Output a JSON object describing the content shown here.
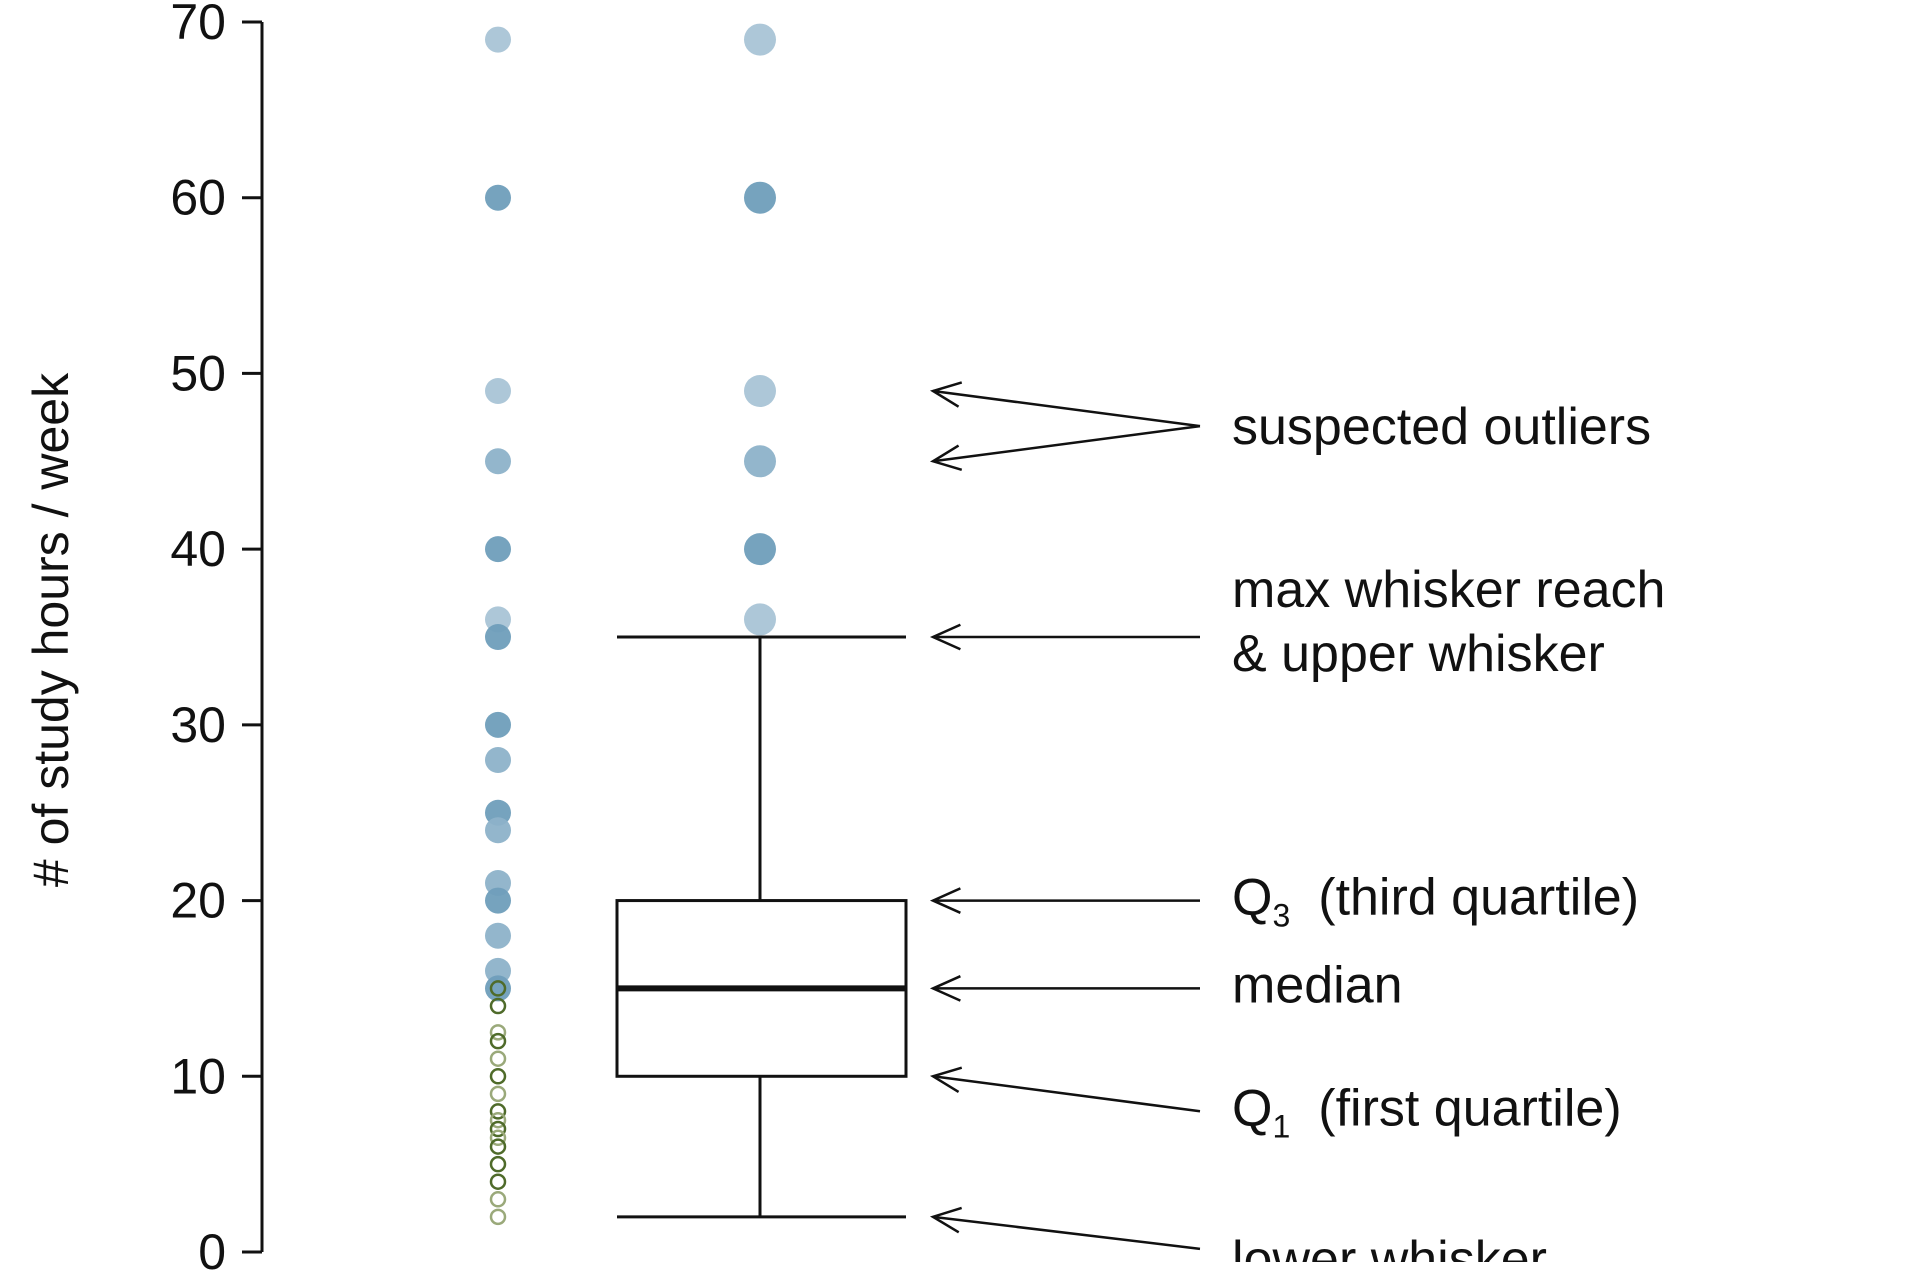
{
  "chart_data": {
    "type": "boxplot",
    "title": "",
    "xlabel": "",
    "ylabel": "# of study hours / week",
    "ylim": [
      0,
      70
    ],
    "yticks": [
      "0",
      "10",
      "20",
      "30",
      "40",
      "50",
      "60",
      "70"
    ],
    "grid": false,
    "colors": {
      "dot_light": "#a9c4d6",
      "dot_dark": "#6f9ebb",
      "circle_dark": "#4f6b2a",
      "circle_light": "#9aa97a",
      "line": "#111111"
    },
    "strip_points": [
      {
        "y": 69,
        "style": "light"
      },
      {
        "y": 60,
        "style": "dark"
      },
      {
        "y": 49,
        "style": "light"
      },
      {
        "y": 45,
        "style": "mid"
      },
      {
        "y": 40,
        "style": "dark"
      },
      {
        "y": 36,
        "style": "light"
      },
      {
        "y": 35,
        "style": "dark"
      },
      {
        "y": 30,
        "style": "dark"
      },
      {
        "y": 28,
        "style": "mid"
      },
      {
        "y": 25,
        "style": "dark"
      },
      {
        "y": 24,
        "style": "mid"
      },
      {
        "y": 21,
        "style": "mid"
      },
      {
        "y": 20,
        "style": "dark"
      },
      {
        "y": 18,
        "style": "mid"
      },
      {
        "y": 16,
        "style": "mid"
      },
      {
        "y": 15,
        "style": "dark"
      },
      {
        "y": 15,
        "style": "circle-dark"
      },
      {
        "y": 14,
        "style": "circle-dark"
      },
      {
        "y": 12.5,
        "style": "circle-light"
      },
      {
        "y": 12,
        "style": "circle-dark"
      },
      {
        "y": 11,
        "style": "circle-light"
      },
      {
        "y": 10,
        "style": "circle-dark"
      },
      {
        "y": 9,
        "style": "circle-light"
      },
      {
        "y": 8,
        "style": "circle-dark"
      },
      {
        "y": 7.5,
        "style": "circle-light"
      },
      {
        "y": 7,
        "style": "circle-dark"
      },
      {
        "y": 6.5,
        "style": "circle-light"
      },
      {
        "y": 6,
        "style": "circle-dark"
      },
      {
        "y": 5,
        "style": "circle-dark"
      },
      {
        "y": 4,
        "style": "circle-dark"
      },
      {
        "y": 3,
        "style": "circle-light"
      },
      {
        "y": 2,
        "style": "circle-light"
      }
    ],
    "box": {
      "lower_whisker": 2,
      "q1": 10,
      "median": 15,
      "q3": 20,
      "upper_whisker": 35
    },
    "outliers": [
      {
        "y": 69,
        "style": "light"
      },
      {
        "y": 60,
        "style": "dark"
      },
      {
        "y": 49,
        "style": "light"
      },
      {
        "y": 45,
        "style": "mid"
      },
      {
        "y": 40,
        "style": "dark"
      },
      {
        "y": 36,
        "style": "light"
      }
    ],
    "annotations": [
      {
        "key": "outliers",
        "lines": [
          {
            "text": "suspected outliers"
          }
        ],
        "targets": [
          49,
          45
        ]
      },
      {
        "key": "maxwhisker",
        "lines": [
          {
            "text": "max whisker reach"
          },
          {
            "text": "& upper whisker"
          }
        ],
        "targets": [
          35
        ]
      },
      {
        "key": "q3",
        "lines": [
          {
            "text": "Q",
            "sub": "3",
            "rest": "(third quartile)"
          }
        ],
        "targets": [
          20
        ]
      },
      {
        "key": "median",
        "lines": [
          {
            "text": "median"
          }
        ],
        "targets": [
          15
        ]
      },
      {
        "key": "q1",
        "lines": [
          {
            "text": "Q",
            "sub": "1",
            "rest": "(first quartile)"
          }
        ],
        "targets": [
          10
        ]
      },
      {
        "key": "lowerwhisker",
        "lines": [
          {
            "text": "lower whisker"
          }
        ],
        "targets": [
          2
        ]
      }
    ]
  }
}
